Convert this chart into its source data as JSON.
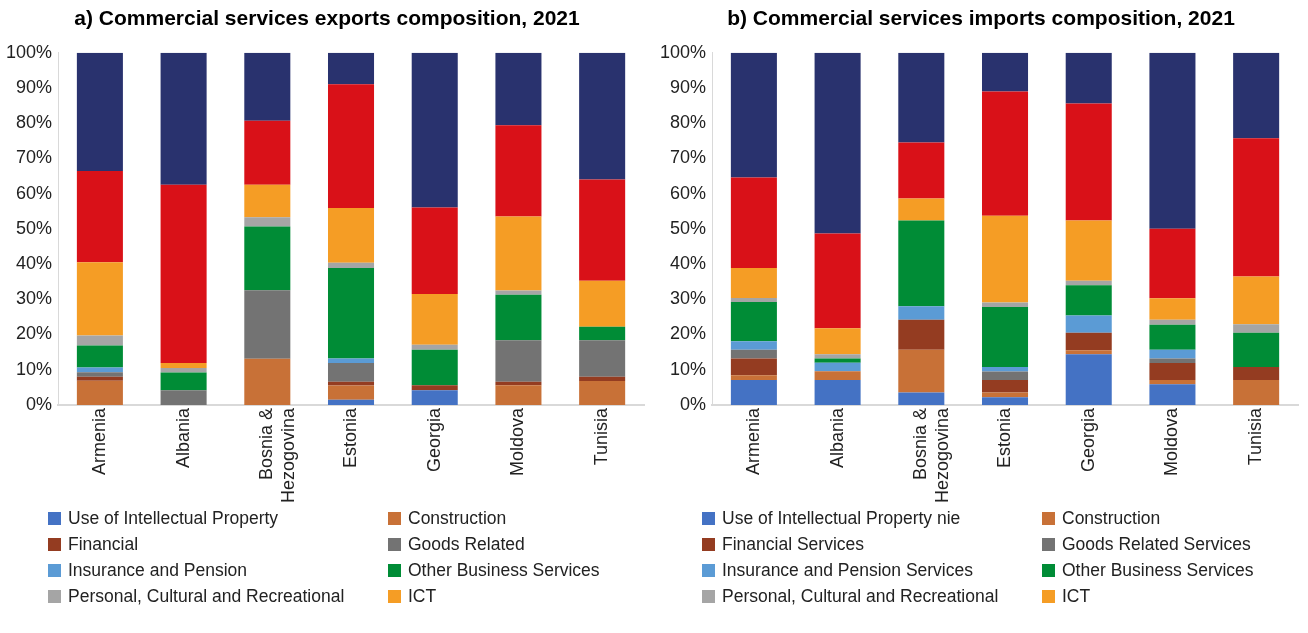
{
  "chart_data": [
    {
      "type": "bar",
      "title": "a) Commercial services exports composition, 2021",
      "stacked": true,
      "grid": false,
      "legend": "bottom",
      "categories": [
        "Armenia",
        "Albania",
        "Bosnia & Hezogovina",
        "Estonia",
        "Georgia",
        "Moldova",
        "Tunisia"
      ],
      "ylim": [
        0,
        100
      ],
      "yticks": [
        {
          "value": 0,
          "label": "0%"
        },
        {
          "value": 10,
          "label": "10%"
        },
        {
          "value": 20,
          "label": "20%"
        },
        {
          "value": 30,
          "label": "30%"
        },
        {
          "value": 40,
          "label": "40%"
        },
        {
          "value": 50,
          "label": "50%"
        },
        {
          "value": 60,
          "label": "60%"
        },
        {
          "value": 70,
          "label": "70%"
        },
        {
          "value": 80,
          "label": "80%"
        },
        {
          "value": 90,
          "label": "90%"
        },
        {
          "value": 100,
          "label": "100%"
        }
      ],
      "series": [
        {
          "name": "Use of Intellectual Property",
          "color": "#4472c4",
          "values": [
            0,
            0,
            0,
            1.5,
            4.2,
            0,
            0
          ]
        },
        {
          "name": "Construction",
          "color": "#c87137",
          "values": [
            6.9,
            0,
            13.1,
            4.0,
            0,
            5.6,
            6.8
          ]
        },
        {
          "name": "Financial",
          "color": "#943c21",
          "values": [
            1.1,
            0,
            0,
            1.1,
            1.4,
            1.0,
            1.2
          ]
        },
        {
          "name": "Goods Related",
          "color": "#737373",
          "values": [
            1.3,
            4.2,
            19.5,
            5.3,
            0,
            11.8,
            10.4
          ]
        },
        {
          "name": "Insurance and Pension",
          "color": "#5b9bd5",
          "values": [
            1.3,
            0,
            0,
            1.3,
            0,
            0,
            0
          ]
        },
        {
          "name": "Other Business Services",
          "color": "#008c36",
          "values": [
            6.3,
            5.0,
            18.1,
            25.7,
            10.1,
            12.9,
            3.8
          ]
        },
        {
          "name": "Personal, Cultural and Recreational",
          "color": "#a5a5a5",
          "values": [
            2.8,
            1.3,
            2.6,
            1.5,
            1.4,
            1.2,
            0
          ]
        },
        {
          "name": "ICT",
          "color": "#f59d25",
          "values": [
            20.8,
            1.4,
            9.2,
            15.5,
            14.4,
            21.0,
            13.1
          ]
        },
        {
          "color": "#d91118",
          "values": [
            25.9,
            50.6,
            18.2,
            35.2,
            24.6,
            25.9,
            28.7
          ]
        },
        {
          "color": "#29326e",
          "values": [
            33.6,
            37.5,
            19.3,
            8.9,
            43.9,
            20.6,
            36.0
          ]
        }
      ]
    },
    {
      "type": "bar",
      "title": "b) Commercial services imports composition, 2021",
      "stacked": true,
      "grid": false,
      "legend": "bottom",
      "categories": [
        "Armenia",
        "Albania",
        "Bosnia & Hezogovina",
        "Estonia",
        "Georgia",
        "Moldova",
        "Tunisia"
      ],
      "ylim": [
        0,
        100
      ],
      "yticks": [
        {
          "value": 0,
          "label": "0%"
        },
        {
          "value": 10,
          "label": "10%"
        },
        {
          "value": 20,
          "label": "20%"
        },
        {
          "value": 30,
          "label": "30%"
        },
        {
          "value": 40,
          "label": "40%"
        },
        {
          "value": 50,
          "label": "50%"
        },
        {
          "value": 60,
          "label": "60%"
        },
        {
          "value": 70,
          "label": "70%"
        },
        {
          "value": 80,
          "label": "80%"
        },
        {
          "value": 90,
          "label": "90%"
        },
        {
          "value": 100,
          "label": "100%"
        }
      ],
      "series": [
        {
          "name": "Use of Intellectual Property nie",
          "color": "#4472c4",
          "values": [
            7.1,
            7.1,
            3.5,
            2.2,
            14.4,
            5.9,
            0
          ]
        },
        {
          "name": "Construction",
          "color": "#c87137",
          "values": [
            1.3,
            2.5,
            12.2,
            1.3,
            1.1,
            1.2,
            7.1
          ]
        },
        {
          "name": "Financial Services",
          "color": "#943c21",
          "values": [
            4.8,
            0,
            8.5,
            3.6,
            5.0,
            4.8,
            3.7
          ]
        },
        {
          "name": "Goods Related Services",
          "color": "#737373",
          "values": [
            2.5,
            0,
            0,
            2.4,
            0,
            1.3,
            0
          ]
        },
        {
          "name": "Insurance and Pension Services",
          "color": "#5b9bd5",
          "values": [
            2.4,
            2.4,
            3.8,
            1.3,
            4.9,
            2.5,
            0
          ]
        },
        {
          "name": "Other Business Services",
          "color": "#008c36",
          "values": [
            11.1,
            1.2,
            24.4,
            17.0,
            8.6,
            7.1,
            9.7
          ]
        },
        {
          "name": "Personal, Cultural and Recreational",
          "color": "#a5a5a5",
          "values": [
            1.2,
            1.2,
            0,
            1.3,
            1.3,
            1.4,
            2.4
          ]
        },
        {
          "name": "ICT",
          "color": "#f59d25",
          "values": [
            8.5,
            7.4,
            6.2,
            24.6,
            17.1,
            6.1,
            13.6
          ]
        },
        {
          "color": "#d91118",
          "values": [
            25.7,
            26.9,
            15.9,
            35.3,
            33.2,
            19.7,
            39.2
          ]
        },
        {
          "color": "#29326e",
          "values": [
            35.4,
            51.3,
            25.5,
            11.0,
            14.4,
            50.0,
            24.3
          ]
        }
      ]
    }
  ]
}
